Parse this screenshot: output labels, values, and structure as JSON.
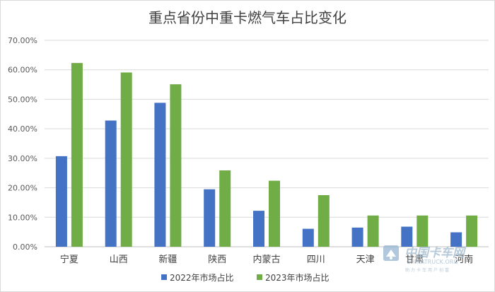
{
  "chart_data": {
    "type": "bar",
    "title": "重点省份中重卡燃气车占比变化",
    "categories": [
      "宁夏",
      "山西",
      "新疆",
      "陕西",
      "内蒙古",
      "四川",
      "天津",
      "甘肃",
      "河南"
    ],
    "series": [
      {
        "name": "2022年市场占比",
        "color": "#4472c4",
        "values": [
          0.307,
          0.428,
          0.488,
          0.195,
          0.122,
          0.061,
          0.065,
          0.068,
          0.049
        ]
      },
      {
        "name": "2023年市场占比",
        "color": "#70ad47",
        "values": [
          0.623,
          0.591,
          0.551,
          0.259,
          0.224,
          0.175,
          0.106,
          0.106,
          0.106
        ]
      }
    ],
    "ylim": [
      0,
      0.7
    ],
    "yticks": [
      "0.00%",
      "10.00%",
      "20.00%",
      "30.00%",
      "40.00%",
      "50.00%",
      "60.00%",
      "70.00%"
    ],
    "grid": true,
    "legend_position": "bottom"
  },
  "watermark": {
    "brand_cn": "中国卡车网",
    "brand_en": "CHINATRUCK.ORG",
    "tagline": "助力卡车用户创富"
  }
}
